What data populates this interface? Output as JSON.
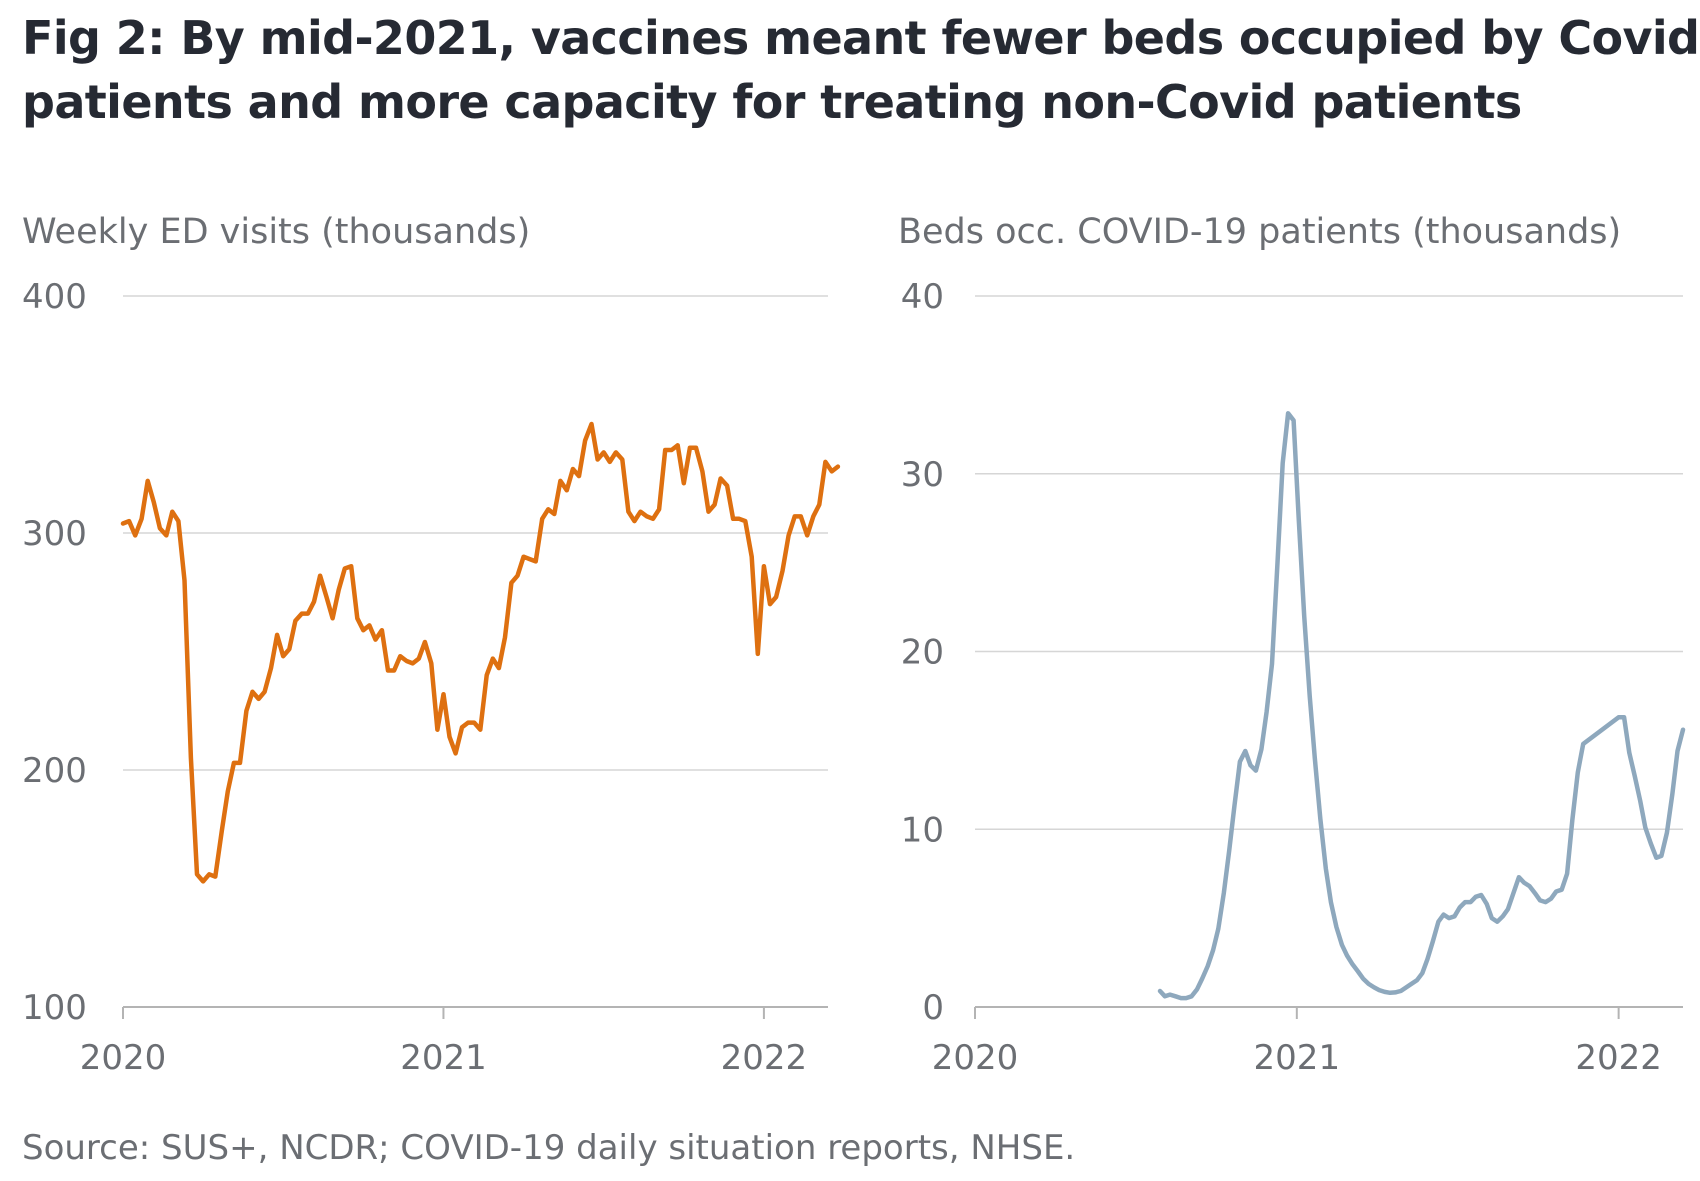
{
  "title_lines": [
    "Fig 2: By mid-2021, vaccines meant fewer beds occupied by Covid",
    "patients and more capacity for treating non-Covid patients"
  ],
  "source": "Source: SUS+, NCDR; COVID-19 daily situation reports, NHSE.",
  "colors": {
    "ed_line": "#de7010",
    "beds_line": "#8ea8bd",
    "grid": "#d6d6d6",
    "axis": "#b4b4b4",
    "text_muted": "#6b6e73",
    "title_text": "#262a33"
  },
  "chart_data": [
    {
      "type": "line",
      "title": "Weekly ED visits (thousands)",
      "xlabel": "",
      "ylabel": "",
      "x_ticks": [
        "2020",
        "2021",
        "2022"
      ],
      "x_tick_values": [
        2020,
        2021,
        2022
      ],
      "xlim": [
        2020,
        2022.2
      ],
      "y_ticks": [
        100,
        200,
        300,
        400
      ],
      "ylim": [
        100,
        400
      ],
      "grid": true,
      "series": [
        {
          "color": "#de7010",
          "points": [
            [
              2020.0,
              304
            ],
            [
              2020.019,
              305
            ],
            [
              2020.038,
              299
            ],
            [
              2020.058,
              306
            ],
            [
              2020.077,
              322
            ],
            [
              2020.096,
              313
            ],
            [
              2020.115,
              302
            ],
            [
              2020.135,
              299
            ],
            [
              2020.154,
              309
            ],
            [
              2020.173,
              305
            ],
            [
              2020.192,
              280
            ],
            [
              2020.212,
              205
            ],
            [
              2020.231,
              156
            ],
            [
              2020.25,
              153
            ],
            [
              2020.269,
              156
            ],
            [
              2020.288,
              155
            ],
            [
              2020.308,
              174
            ],
            [
              2020.327,
              191
            ],
            [
              2020.346,
              203
            ],
            [
              2020.365,
              203
            ],
            [
              2020.385,
              225
            ],
            [
              2020.404,
              233
            ],
            [
              2020.423,
              230
            ],
            [
              2020.442,
              233
            ],
            [
              2020.462,
              243
            ],
            [
              2020.481,
              257
            ],
            [
              2020.5,
              248
            ],
            [
              2020.519,
              251
            ],
            [
              2020.538,
              263
            ],
            [
              2020.558,
              266
            ],
            [
              2020.577,
              266
            ],
            [
              2020.596,
              271
            ],
            [
              2020.615,
              282
            ],
            [
              2020.635,
              273
            ],
            [
              2020.654,
              264
            ],
            [
              2020.673,
              276
            ],
            [
              2020.692,
              285
            ],
            [
              2020.712,
              286
            ],
            [
              2020.731,
              264
            ],
            [
              2020.75,
              259
            ],
            [
              2020.769,
              261
            ],
            [
              2020.788,
              255
            ],
            [
              2020.808,
              259
            ],
            [
              2020.827,
              242
            ],
            [
              2020.846,
              242
            ],
            [
              2020.865,
              248
            ],
            [
              2020.885,
              246
            ],
            [
              2020.904,
              245
            ],
            [
              2020.923,
              247
            ],
            [
              2020.942,
              254
            ],
            [
              2020.962,
              245
            ],
            [
              2020.981,
              217
            ],
            [
              2021.0,
              232
            ],
            [
              2021.019,
              214
            ],
            [
              2021.038,
              207
            ],
            [
              2021.058,
              218
            ],
            [
              2021.077,
              220
            ],
            [
              2021.096,
              220
            ],
            [
              2021.115,
              217
            ],
            [
              2021.135,
              240
            ],
            [
              2021.154,
              247
            ],
            [
              2021.173,
              243
            ],
            [
              2021.192,
              256
            ],
            [
              2021.212,
              279
            ],
            [
              2021.231,
              282
            ],
            [
              2021.25,
              290
            ],
            [
              2021.269,
              289
            ],
            [
              2021.288,
              288
            ],
            [
              2021.308,
              306
            ],
            [
              2021.327,
              310
            ],
            [
              2021.346,
              308
            ],
            [
              2021.365,
              322
            ],
            [
              2021.385,
              318
            ],
            [
              2021.404,
              327
            ],
            [
              2021.423,
              324
            ],
            [
              2021.442,
              339
            ],
            [
              2021.462,
              346
            ],
            [
              2021.481,
              331
            ],
            [
              2021.5,
              334
            ],
            [
              2021.519,
              330
            ],
            [
              2021.538,
              334
            ],
            [
              2021.558,
              331
            ],
            [
              2021.577,
              309
            ],
            [
              2021.596,
              305
            ],
            [
              2021.615,
              309
            ],
            [
              2021.635,
              307
            ],
            [
              2021.654,
              306
            ],
            [
              2021.673,
              310
            ],
            [
              2021.692,
              335
            ],
            [
              2021.712,
              335
            ],
            [
              2021.731,
              337
            ],
            [
              2021.75,
              321
            ],
            [
              2021.769,
              336
            ],
            [
              2021.788,
              336
            ],
            [
              2021.808,
              326
            ],
            [
              2021.827,
              309
            ],
            [
              2021.846,
              312
            ],
            [
              2021.865,
              323
            ],
            [
              2021.885,
              320
            ],
            [
              2021.904,
              306
            ],
            [
              2021.923,
              306
            ],
            [
              2021.942,
              305
            ],
            [
              2021.962,
              290
            ],
            [
              2021.981,
              249
            ],
            [
              2022.0,
              286
            ],
            [
              2022.019,
              270
            ],
            [
              2022.038,
              273
            ],
            [
              2022.058,
              284
            ],
            [
              2022.077,
              299
            ],
            [
              2022.096,
              307
            ],
            [
              2022.115,
              307
            ],
            [
              2022.135,
              299
            ],
            [
              2022.154,
              307
            ],
            [
              2022.173,
              312
            ],
            [
              2022.192,
              330
            ],
            [
              2022.212,
              326
            ],
            [
              2022.231,
              328
            ]
          ]
        }
      ]
    },
    {
      "type": "line",
      "title": "Beds occ. COVID-19 patients (thousands)",
      "xlabel": "",
      "ylabel": "",
      "x_ticks": [
        "2020",
        "2021",
        "2022"
      ],
      "x_tick_values": [
        2020,
        2021,
        2022
      ],
      "xlim": [
        2020,
        2022.2
      ],
      "y_ticks": [
        0,
        10,
        20,
        30,
        40
      ],
      "ylim": [
        0,
        40
      ],
      "grid": true,
      "series": [
        {
          "color": "#8ea8bd",
          "points": [
            [
              2020.575,
              0.9
            ],
            [
              2020.59,
              0.6
            ],
            [
              2020.606,
              0.7
            ],
            [
              2020.623,
              0.6
            ],
            [
              2020.64,
              0.5
            ],
            [
              2020.656,
              0.5
            ],
            [
              2020.673,
              0.6
            ],
            [
              2020.69,
              1.0
            ],
            [
              2020.706,
              1.6
            ],
            [
              2020.723,
              2.3
            ],
            [
              2020.74,
              3.2
            ],
            [
              2020.756,
              4.4
            ],
            [
              2020.773,
              6.4
            ],
            [
              2020.79,
              8.8
            ],
            [
              2020.806,
              11.3
            ],
            [
              2020.823,
              13.8
            ],
            [
              2020.84,
              14.4
            ],
            [
              2020.856,
              13.6
            ],
            [
              2020.873,
              13.3
            ],
            [
              2020.89,
              14.5
            ],
            [
              2020.906,
              16.6
            ],
            [
              2020.923,
              19.3
            ],
            [
              2020.94,
              25.0
            ],
            [
              2020.956,
              30.6
            ],
            [
              2020.973,
              33.4
            ],
            [
              2020.99,
              33.0
            ],
            [
              2021.006,
              27.5
            ],
            [
              2021.023,
              22.0
            ],
            [
              2021.04,
              17.5
            ],
            [
              2021.056,
              14.0
            ],
            [
              2021.073,
              10.6
            ],
            [
              2021.09,
              7.8
            ],
            [
              2021.106,
              5.9
            ],
            [
              2021.123,
              4.5
            ],
            [
              2021.14,
              3.5
            ],
            [
              2021.156,
              2.9
            ],
            [
              2021.173,
              2.4
            ],
            [
              2021.19,
              2.0
            ],
            [
              2021.206,
              1.6
            ],
            [
              2021.223,
              1.3
            ],
            [
              2021.24,
              1.1
            ],
            [
              2021.256,
              0.95
            ],
            [
              2021.273,
              0.85
            ],
            [
              2021.29,
              0.8
            ],
            [
              2021.306,
              0.82
            ],
            [
              2021.323,
              0.9
            ],
            [
              2021.34,
              1.1
            ],
            [
              2021.356,
              1.3
            ],
            [
              2021.373,
              1.5
            ],
            [
              2021.39,
              1.9
            ],
            [
              2021.406,
              2.7
            ],
            [
              2021.423,
              3.7
            ],
            [
              2021.44,
              4.8
            ],
            [
              2021.456,
              5.2
            ],
            [
              2021.473,
              5.0
            ],
            [
              2021.49,
              5.1
            ],
            [
              2021.506,
              5.6
            ],
            [
              2021.523,
              5.9
            ],
            [
              2021.54,
              5.9
            ],
            [
              2021.556,
              6.2
            ],
            [
              2021.573,
              6.3
            ],
            [
              2021.59,
              5.8
            ],
            [
              2021.606,
              5.0
            ],
            [
              2021.623,
              4.8
            ],
            [
              2021.64,
              5.1
            ],
            [
              2021.656,
              5.5
            ],
            [
              2021.673,
              6.4
            ],
            [
              2021.69,
              7.3
            ],
            [
              2021.706,
              7.0
            ],
            [
              2021.723,
              6.8
            ],
            [
              2021.74,
              6.4
            ],
            [
              2021.756,
              6.0
            ],
            [
              2021.773,
              5.9
            ],
            [
              2021.79,
              6.1
            ],
            [
              2021.806,
              6.5
            ],
            [
              2021.823,
              6.6
            ],
            [
              2021.84,
              7.5
            ],
            [
              2021.856,
              10.5
            ],
            [
              2021.873,
              13.2
            ],
            [
              2021.89,
              14.8
            ],
            [
              2022.0,
              16.3
            ],
            [
              2022.017,
              16.3
            ],
            [
              2022.033,
              14.3
            ],
            [
              2022.05,
              13.0
            ],
            [
              2022.067,
              11.6
            ],
            [
              2022.083,
              10.1
            ],
            [
              2022.1,
              9.2
            ],
            [
              2022.117,
              8.4
            ],
            [
              2022.133,
              8.5
            ],
            [
              2022.15,
              9.8
            ],
            [
              2022.167,
              12.0
            ],
            [
              2022.183,
              14.4
            ],
            [
              2022.2,
              15.6
            ]
          ]
        }
      ]
    }
  ]
}
